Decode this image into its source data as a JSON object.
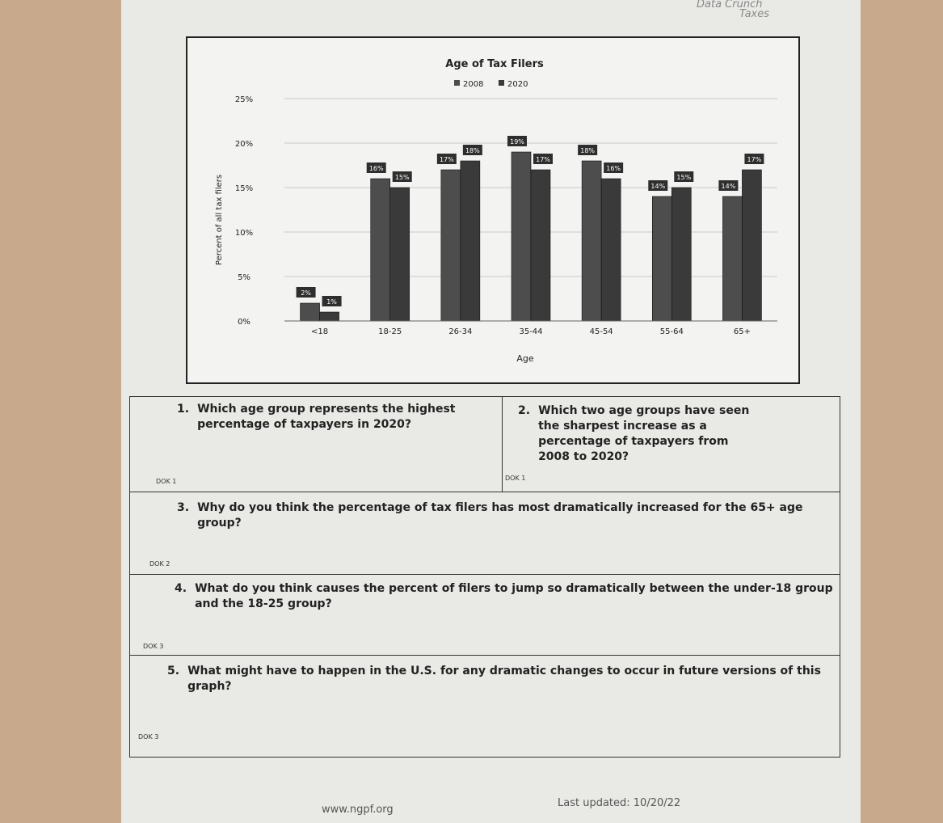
{
  "header": {
    "section": "Data Crunch",
    "topic": "Taxes"
  },
  "chart_data": {
    "type": "bar",
    "title": "Age of Tax Filers",
    "x_label": "Age",
    "y_label": "Percent of all tax filers",
    "categories": [
      "<18",
      "18-25",
      "26-34",
      "35-44",
      "45-54",
      "55-64",
      "65+"
    ],
    "series": [
      {
        "name": "2008",
        "color": "#4d4d4d",
        "values": [
          2,
          16,
          17,
          19,
          18,
          14,
          14
        ],
        "value_labels": [
          "2%",
          "16%",
          "17%",
          "19%",
          "18%",
          "14%",
          "14%"
        ]
      },
      {
        "name": "2020",
        "color": "#3a3a3a",
        "values": [
          1,
          15,
          18,
          17,
          16,
          15,
          17
        ],
        "value_labels": [
          "1%",
          "15%",
          "18%",
          "17%",
          "16%",
          "15%",
          "17%"
        ]
      }
    ],
    "ylim": [
      0,
      25
    ],
    "yticks": [
      {
        "value": 0,
        "label": "0%"
      },
      {
        "value": 5,
        "label": "5%"
      },
      {
        "value": 10,
        "label": "10%"
      },
      {
        "value": 15,
        "label": "15%"
      },
      {
        "value": 20,
        "label": "20%"
      },
      {
        "value": 25,
        "label": "25%"
      }
    ],
    "grid": true,
    "legend": "top"
  },
  "questions": [
    {
      "number": "1.",
      "text": "Which age group represents the highest percentage of taxpayers in 2020?",
      "dok": "DOK 1"
    },
    {
      "number": "2.",
      "text": "Which two age groups have seen the sharpest increase as a percentage of taxpayers from 2008 to 2020?",
      "dok": "DOK 1"
    },
    {
      "number": "3.",
      "text": "Why do you think the percentage of tax filers has most dramatically increased for the 65+ age group?",
      "dok": "DOK 2"
    },
    {
      "number": "4.",
      "text": "What do you think causes the percent of filers to jump so dramatically between the under-18 group and the 18-25 group?",
      "dok": "DOK 3"
    },
    {
      "number": "5.",
      "text": "What might have to happen in the U.S. for any dramatic changes to occur in future versions of this graph?",
      "dok": "DOK 3"
    }
  ],
  "footer": {
    "url": "www.ngpf.org",
    "updated": "Last updated: 10/20/22"
  }
}
